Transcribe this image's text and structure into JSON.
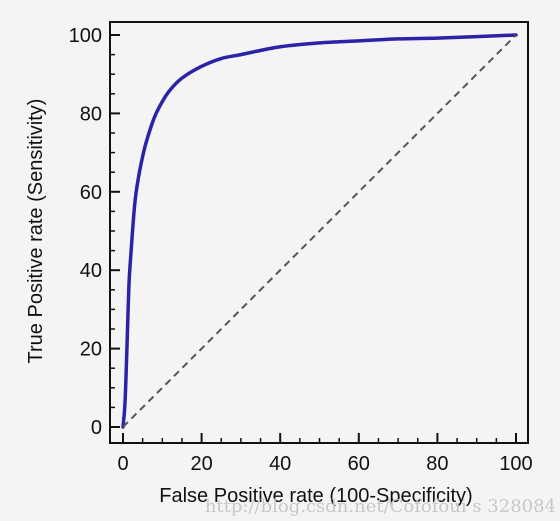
{
  "chart_data": {
    "type": "line",
    "xlabel": "False Positive rate (100-Specificity)",
    "ylabel": "True Positive rate (Sensitivity)",
    "xlim": [
      0,
      100
    ],
    "ylim": [
      0,
      100
    ],
    "x_ticks": [
      0,
      20,
      40,
      60,
      80,
      100
    ],
    "y_ticks": [
      0,
      20,
      40,
      60,
      80,
      100
    ],
    "minor_tick_step": 5,
    "grid": false,
    "legend": "none",
    "series": [
      {
        "role": "roc-curve",
        "style": "solid",
        "color": "#2a23a8",
        "x": [
          0,
          0.5,
          1,
          1.5,
          2,
          3,
          4,
          5,
          6,
          8,
          10,
          12,
          15,
          20,
          25,
          30,
          40,
          50,
          60,
          70,
          80,
          90,
          100
        ],
        "y": [
          0,
          6,
          20,
          36,
          44,
          57,
          64,
          69,
          73,
          79,
          83,
          86,
          89,
          92,
          94,
          95,
          97,
          98,
          98.5,
          99,
          99.2,
          99.6,
          100
        ]
      },
      {
        "role": "reference-diagonal",
        "style": "dashed",
        "color": "#555555",
        "x": [
          0,
          100
        ],
        "y": [
          0,
          100
        ]
      }
    ]
  },
  "watermark": "http://blog.csdn.net/Cofofoui s 328084"
}
